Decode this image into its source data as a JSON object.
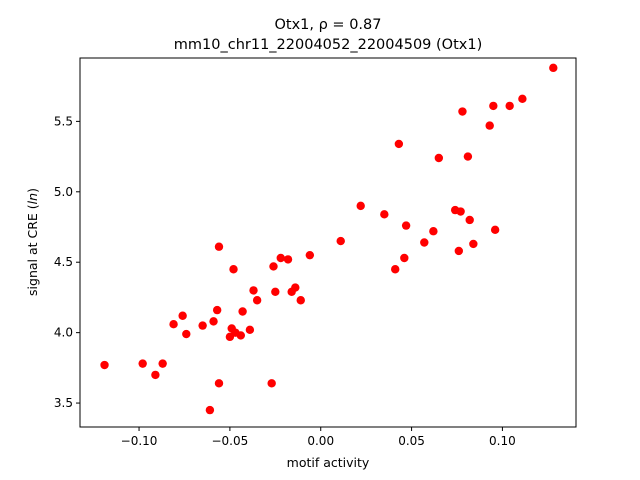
{
  "chart_data": {
    "type": "scatter",
    "title_line1": "Otx1, ρ = 0.87",
    "title_line2": "mm10_chr11_22004052_22004509 (Otx1)",
    "xlabel": "motif activity",
    "ylabel": "signal at CRE (ln)",
    "xlim": [
      -0.1325,
      0.1405
    ],
    "ylim": [
      3.33,
      5.95
    ],
    "xticks": [
      -0.1,
      -0.05,
      0.0,
      0.05,
      0.1
    ],
    "xtick_labels": [
      "−0.10",
      "−0.05",
      "0.00",
      "0.05",
      "0.10"
    ],
    "yticks": [
      3.5,
      4.0,
      4.5,
      5.0,
      5.5
    ],
    "ytick_labels": [
      "3.5",
      "4.0",
      "4.5",
      "5.0",
      "5.5"
    ],
    "grid": false,
    "marker_color": "#ff0000",
    "series": [
      {
        "points": [
          [
            -0.119,
            3.77
          ],
          [
            -0.098,
            3.78
          ],
          [
            -0.091,
            3.7
          ],
          [
            -0.087,
            3.78
          ],
          [
            -0.081,
            4.06
          ],
          [
            -0.076,
            4.12
          ],
          [
            -0.074,
            3.99
          ],
          [
            -0.065,
            4.05
          ],
          [
            -0.061,
            3.45
          ],
          [
            -0.059,
            4.08
          ],
          [
            -0.057,
            4.16
          ],
          [
            -0.056,
            3.64
          ],
          [
            -0.056,
            4.61
          ],
          [
            -0.05,
            3.97
          ],
          [
            -0.049,
            4.03
          ],
          [
            -0.048,
            4.45
          ],
          [
            -0.047,
            4.0
          ],
          [
            -0.044,
            3.98
          ],
          [
            -0.043,
            4.15
          ],
          [
            -0.039,
            4.02
          ],
          [
            -0.037,
            4.3
          ],
          [
            -0.035,
            4.23
          ],
          [
            -0.027,
            3.64
          ],
          [
            -0.026,
            4.47
          ],
          [
            -0.025,
            4.29
          ],
          [
            -0.022,
            4.53
          ],
          [
            -0.018,
            4.52
          ],
          [
            -0.016,
            4.29
          ],
          [
            -0.014,
            4.32
          ],
          [
            -0.011,
            4.23
          ],
          [
            -0.006,
            4.55
          ],
          [
            0.011,
            4.65
          ],
          [
            0.022,
            4.9
          ],
          [
            0.035,
            4.84
          ],
          [
            0.041,
            4.45
          ],
          [
            0.043,
            5.34
          ],
          [
            0.046,
            4.53
          ],
          [
            0.047,
            4.76
          ],
          [
            0.057,
            4.64
          ],
          [
            0.062,
            4.72
          ],
          [
            0.065,
            5.24
          ],
          [
            0.074,
            4.87
          ],
          [
            0.076,
            4.58
          ],
          [
            0.077,
            4.86
          ],
          [
            0.078,
            5.57
          ],
          [
            0.081,
            5.25
          ],
          [
            0.082,
            4.8
          ],
          [
            0.084,
            4.63
          ],
          [
            0.093,
            5.47
          ],
          [
            0.095,
            5.61
          ],
          [
            0.096,
            4.73
          ],
          [
            0.104,
            5.61
          ],
          [
            0.111,
            5.66
          ],
          [
            0.128,
            5.88
          ]
        ]
      }
    ]
  }
}
